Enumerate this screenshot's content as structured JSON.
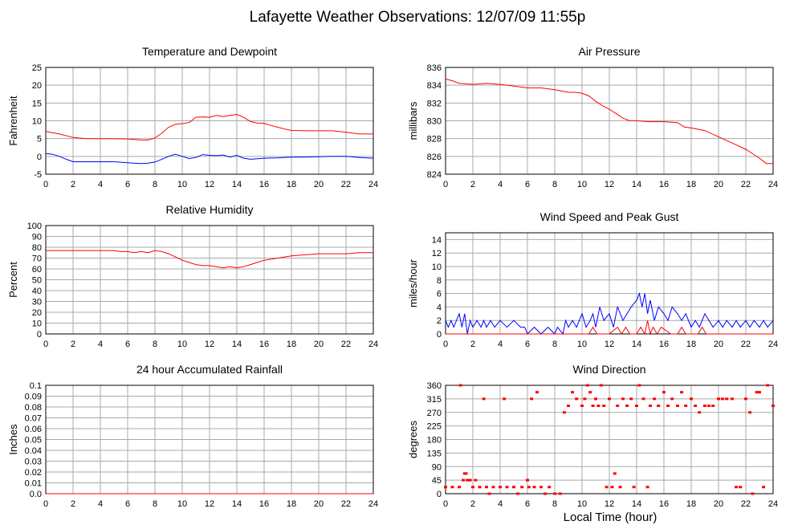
{
  "title": "Lafayette Weather Observations: 12/07/09 11:55p",
  "xlabel": "Local Time (hour)",
  "x_ticks": [
    "0",
    "2",
    "4",
    "6",
    "8",
    "10",
    "12",
    "14",
    "16",
    "18",
    "20",
    "22",
    "24"
  ],
  "colors": {
    "red": "#ff0000",
    "blue": "#0000ff",
    "grid": "#a8a8a8",
    "frame": "#000000"
  },
  "chart_data": [
    {
      "type": "line",
      "title": "Temperature and Dewpoint",
      "ylabel": "Fahrenheit",
      "xlim": [
        0,
        24
      ],
      "ylim": [
        -5,
        25
      ],
      "y_ticks": [
        "-5",
        "0",
        "5",
        "10",
        "15",
        "20",
        "25"
      ],
      "grid": true,
      "series": [
        {
          "color": "red",
          "x": [
            0,
            1,
            2,
            3,
            4,
            5,
            6,
            7,
            7.5,
            8,
            8.5,
            9,
            9.5,
            10,
            10.5,
            11,
            11.5,
            12,
            12.5,
            13,
            13.5,
            14,
            14.5,
            15,
            15.5,
            16,
            16.5,
            17,
            17.5,
            18,
            19,
            20,
            21,
            22,
            23,
            24
          ],
          "y": [
            7,
            6.3,
            5.3,
            5,
            5,
            5,
            4.9,
            4.6,
            4.6,
            5.2,
            6.5,
            8.2,
            9,
            9.2,
            9.5,
            11,
            11.1,
            11,
            11.5,
            11.2,
            11.5,
            11.8,
            11,
            9.8,
            9.4,
            9.3,
            8.7,
            8.2,
            7.7,
            7.3,
            7.2,
            7.2,
            7.2,
            6.8,
            6.3,
            6.3
          ]
        },
        {
          "color": "blue",
          "x": [
            0,
            0.5,
            1,
            1.5,
            2,
            3,
            4,
            5,
            6,
            7,
            7.5,
            8,
            8.5,
            9,
            9.5,
            10,
            10.5,
            11,
            11.5,
            12,
            12.5,
            13,
            13.5,
            14,
            14.5,
            15,
            16,
            17,
            18,
            19,
            20,
            21,
            22,
            23,
            24
          ],
          "y": [
            0.8,
            0.6,
            0,
            -0.8,
            -1.5,
            -1.5,
            -1.5,
            -1.5,
            -1.8,
            -2,
            -1.9,
            -1.6,
            -0.8,
            0,
            0.6,
            0,
            -0.6,
            -0.3,
            0.5,
            0.3,
            0.2,
            0.4,
            -0.2,
            0.3,
            -0.5,
            -0.8,
            -0.5,
            -0.4,
            -0.2,
            -0.2,
            -0.1,
            0,
            0,
            -0.3,
            -0.5
          ]
        }
      ]
    },
    {
      "type": "line",
      "title": "Air Pressure",
      "ylabel": "millibars",
      "xlim": [
        0,
        24
      ],
      "ylim": [
        824,
        836
      ],
      "y_ticks": [
        "824",
        "826",
        "828",
        "830",
        "832",
        "834",
        "836"
      ],
      "grid": true,
      "series": [
        {
          "color": "red",
          "x": [
            0,
            0.5,
            1,
            2,
            3,
            4,
            5,
            6,
            7,
            8,
            9,
            9.5,
            10,
            10.5,
            11,
            11.5,
            12,
            12.5,
            13,
            13.5,
            14,
            15,
            16,
            17,
            17.5,
            18,
            19,
            20,
            21,
            22,
            22.5,
            23,
            23.5,
            24
          ],
          "y": [
            834.7,
            834.5,
            834.2,
            834.1,
            834.2,
            834.1,
            833.9,
            833.7,
            833.7,
            833.5,
            833.2,
            833.2,
            833.1,
            832.8,
            832.2,
            831.7,
            831.3,
            830.8,
            830.3,
            830,
            830,
            829.9,
            829.9,
            829.8,
            829.3,
            829.2,
            828.9,
            828.2,
            827.5,
            826.8,
            826.3,
            825.8,
            825.2,
            825.2
          ]
        }
      ]
    },
    {
      "type": "line",
      "title": "Relative Humidity",
      "ylabel": "Percent",
      "xlim": [
        0,
        24
      ],
      "ylim": [
        0,
        100
      ],
      "y_ticks": [
        "0",
        "10",
        "20",
        "30",
        "40",
        "50",
        "60",
        "70",
        "80",
        "90",
        "100"
      ],
      "grid": true,
      "series": [
        {
          "color": "red",
          "x": [
            0,
            1,
            2,
            3,
            4,
            5,
            5.5,
            6,
            6.5,
            7,
            7.5,
            8,
            8.5,
            9,
            9.5,
            10,
            10.5,
            11,
            11.5,
            12,
            12.5,
            13,
            13.5,
            14,
            14.5,
            15,
            15.5,
            16,
            16.5,
            17,
            17.5,
            18,
            19,
            20,
            21,
            22,
            23,
            24
          ],
          "y": [
            77,
            77,
            77,
            77,
            77,
            77,
            76,
            76,
            75,
            76,
            75,
            77,
            76,
            74,
            71,
            68,
            66,
            64,
            63,
            63,
            62,
            61,
            62,
            61,
            62,
            64,
            66,
            68,
            69,
            70,
            71,
            72,
            73,
            74,
            74,
            74,
            75,
            75
          ]
        }
      ]
    },
    {
      "type": "line",
      "title": "Wind Speed and Peak Gust",
      "ylabel": "miles/hour",
      "xlim": [
        0,
        24
      ],
      "ylim": [
        0,
        15
      ],
      "y_ticks": [
        "0",
        "2",
        "4",
        "6",
        "8",
        "10",
        "12",
        "14"
      ],
      "grid": true,
      "series": [
        {
          "color": "blue",
          "x": [
            0,
            0.2,
            0.4,
            0.6,
            0.8,
            1,
            1.2,
            1.4,
            1.6,
            1.8,
            2,
            2.3,
            2.6,
            2.8,
            3,
            3.3,
            3.6,
            4,
            4.5,
            5,
            5.5,
            5.8,
            6,
            6.5,
            7,
            7.5,
            8,
            8.2,
            8.6,
            8.8,
            9,
            9.3,
            9.6,
            10,
            10.3,
            10.6,
            10.8,
            11,
            11.3,
            11.6,
            12,
            12.3,
            12.6,
            13,
            13.3,
            13.6,
            14,
            14.2,
            14.4,
            14.6,
            14.8,
            15,
            15.3,
            15.6,
            16,
            16.3,
            16.6,
            17,
            17.3,
            17.6,
            18,
            18.3,
            18.6,
            19,
            19.3,
            19.6,
            20,
            20.3,
            20.6,
            21,
            21.3,
            21.6,
            22,
            22.3,
            22.6,
            23,
            23.3,
            23.6,
            24
          ],
          "y": [
            2,
            1,
            2,
            1,
            2,
            3,
            1,
            3,
            0,
            2,
            1,
            2,
            1,
            2,
            1,
            2,
            1,
            2,
            1,
            2,
            1,
            1,
            0,
            1,
            0,
            1,
            0,
            1,
            0,
            2,
            1,
            2,
            1,
            3,
            1,
            2,
            3,
            1,
            4,
            2,
            3,
            1,
            4,
            2,
            3,
            4,
            5,
            6,
            4,
            6,
            3,
            5,
            2,
            4,
            3,
            2,
            4,
            3,
            2,
            3,
            1,
            2,
            1,
            3,
            2,
            1,
            2,
            1,
            2,
            1,
            2,
            1,
            2,
            1,
            2,
            1,
            2,
            1,
            2
          ]
        },
        {
          "color": "red",
          "x": [
            0,
            10.5,
            10.8,
            11.1,
            11.4,
            12,
            12.6,
            12.9,
            13.2,
            13.5,
            14,
            14.3,
            14.6,
            14.8,
            15,
            15.2,
            15.5,
            15.8,
            16.5,
            17,
            17.3,
            17.6,
            18.5,
            18.8,
            19.1,
            24
          ],
          "y": [
            0,
            0,
            1,
            0,
            0,
            0,
            1,
            0,
            1,
            0,
            0,
            1,
            0,
            2,
            0,
            1,
            0,
            1,
            0,
            0,
            1,
            0,
            0,
            1,
            0,
            0
          ]
        }
      ]
    },
    {
      "type": "line",
      "title": "24 hour Accumulated Rainfall",
      "ylabel": "Inches",
      "xlim": [
        0,
        24
      ],
      "ylim": [
        0,
        0.1
      ],
      "y_ticks": [
        "0.0",
        "0.01",
        "0.02",
        "0.03",
        "0.04",
        "0.05",
        "0.06",
        "0.07",
        "0.08",
        "0.09",
        "0.1"
      ],
      "grid": true,
      "series": [
        {
          "color": "red",
          "x": [
            0,
            24
          ],
          "y": [
            0,
            0
          ]
        }
      ]
    },
    {
      "type": "scatter",
      "title": "Wind Direction",
      "ylabel": "degrees",
      "xlim": [
        0,
        24
      ],
      "ylim": [
        0,
        360
      ],
      "y_ticks": [
        "0",
        "45",
        "90",
        "135",
        "180",
        "225",
        "270",
        "315",
        "360"
      ],
      "grid": true,
      "series": [
        {
          "color": "red",
          "points": [
            [
              0,
              22
            ],
            [
              0.5,
              22
            ],
            [
              1,
              22
            ],
            [
              1.1,
              360
            ],
            [
              1.3,
              45
            ],
            [
              1.4,
              67
            ],
            [
              1.5,
              67
            ],
            [
              1.6,
              45
            ],
            [
              1.8,
              45
            ],
            [
              2,
              22
            ],
            [
              2.2,
              45
            ],
            [
              2.5,
              22
            ],
            [
              2.8,
              315
            ],
            [
              3,
              22
            ],
            [
              3.2,
              0
            ],
            [
              3.5,
              22
            ],
            [
              4,
              22
            ],
            [
              4.3,
              315
            ],
            [
              4.5,
              22
            ],
            [
              5,
              22
            ],
            [
              5.3,
              0
            ],
            [
              5.6,
              22
            ],
            [
              6,
              45
            ],
            [
              6.1,
              22
            ],
            [
              6.3,
              315
            ],
            [
              6.5,
              22
            ],
            [
              6.7,
              337
            ],
            [
              7,
              22
            ],
            [
              7.3,
              0
            ],
            [
              7.6,
              22
            ],
            [
              8,
              0
            ],
            [
              8.4,
              0
            ],
            [
              8.7,
              270
            ],
            [
              9,
              292
            ],
            [
              9.3,
              337
            ],
            [
              9.6,
              315
            ],
            [
              10,
              292
            ],
            [
              10.2,
              315
            ],
            [
              10.4,
              360
            ],
            [
              10.6,
              337
            ],
            [
              10.8,
              292
            ],
            [
              11,
              315
            ],
            [
              11.2,
              292
            ],
            [
              11.4,
              360
            ],
            [
              11.6,
              292
            ],
            [
              11.8,
              22
            ],
            [
              12,
              315
            ],
            [
              12.2,
              22
            ],
            [
              12.4,
              67
            ],
            [
              12.6,
              292
            ],
            [
              12.8,
              22
            ],
            [
              13,
              315
            ],
            [
              13.3,
              292
            ],
            [
              13.6,
              315
            ],
            [
              13.8,
              22
            ],
            [
              14,
              292
            ],
            [
              14.2,
              360
            ],
            [
              14.5,
              315
            ],
            [
              14.8,
              22
            ],
            [
              15,
              292
            ],
            [
              15.3,
              315
            ],
            [
              15.6,
              292
            ],
            [
              16,
              337
            ],
            [
              16.3,
              292
            ],
            [
              16.6,
              315
            ],
            [
              17,
              292
            ],
            [
              17.3,
              337
            ],
            [
              17.6,
              292
            ],
            [
              18,
              315
            ],
            [
              18.3,
              292
            ],
            [
              18.6,
              270
            ],
            [
              19,
              292
            ],
            [
              19.3,
              292
            ],
            [
              19.6,
              292
            ],
            [
              20,
              315
            ],
            [
              20.3,
              315
            ],
            [
              20.6,
              315
            ],
            [
              21,
              315
            ],
            [
              21.3,
              22
            ],
            [
              21.6,
              22
            ],
            [
              22,
              315
            ],
            [
              22.3,
              270
            ],
            [
              22.5,
              0
            ],
            [
              22.8,
              337
            ],
            [
              23,
              337
            ],
            [
              23.3,
              22
            ],
            [
              23.6,
              360
            ],
            [
              24,
              292
            ]
          ]
        }
      ]
    }
  ]
}
